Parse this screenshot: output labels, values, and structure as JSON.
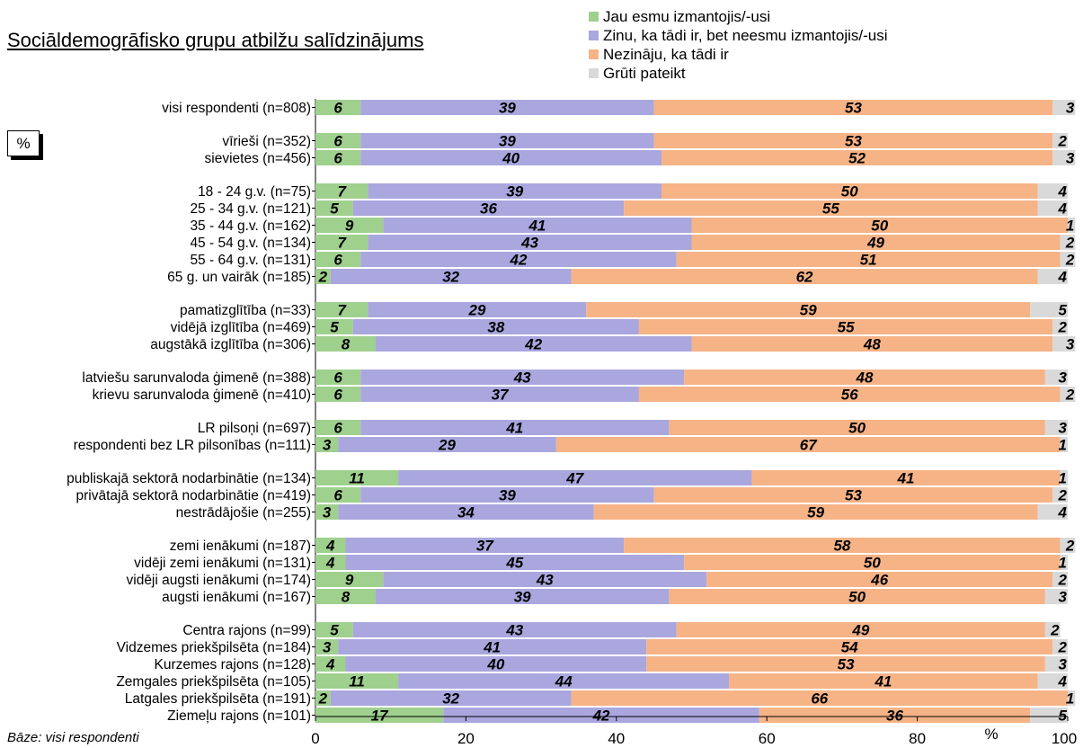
{
  "title": "Sociāldemogrāfisko grupu atbilžu salīdzinājums",
  "unit_box": "%",
  "axis_unit": "%",
  "footnote": "Bāze: visi respondenti",
  "colors": {
    "green": "#9fd08e",
    "purple": "#a9a7de",
    "orange": "#f6b386",
    "gray": "#d9d9d9"
  },
  "legend": [
    {
      "label": "Jau esmu izmantojis/-usi",
      "color": "#9fd08e"
    },
    {
      "label": "Zinu, ka tādi ir, bet neesmu izmantojis/-usi",
      "color": "#a9a7de"
    },
    {
      "label": "Nezināju, ka tādi ir",
      "color": "#f6b386"
    },
    {
      "label": "Grūti pateikt",
      "color": "#d9d9d9"
    }
  ],
  "chart_data": {
    "type": "bar",
    "orientation": "horizontal",
    "stacked": true,
    "xlim": [
      0,
      100
    ],
    "xticks": [
      "0",
      "20",
      "40",
      "60",
      "80",
      "100"
    ],
    "series": [
      {
        "name": "Jau esmu izmantojis/-usi"
      },
      {
        "name": "Zinu, ka tādi ir, bet neesmu izmantojis/-usi"
      },
      {
        "name": "Nezināju, ka tādi ir"
      },
      {
        "name": "Grūti pateikt"
      }
    ],
    "groups": [
      [
        {
          "label": "visi respondenti (n=808)",
          "values": [
            6,
            39,
            53,
            3
          ]
        }
      ],
      [
        {
          "label": "vīrieši (n=352)",
          "values": [
            6,
            39,
            53,
            2
          ]
        },
        {
          "label": "sievietes (n=456)",
          "values": [
            6,
            40,
            52,
            3
          ]
        }
      ],
      [
        {
          "label": "18 - 24 g.v. (n=75)",
          "values": [
            7,
            39,
            50,
            4
          ]
        },
        {
          "label": "25 - 34 g.v. (n=121)",
          "values": [
            5,
            36,
            55,
            4
          ]
        },
        {
          "label": "35 - 44 g.v. (n=162)",
          "values": [
            9,
            41,
            50,
            1
          ]
        },
        {
          "label": "45 - 54 g.v. (n=134)",
          "values": [
            7,
            43,
            49,
            2
          ]
        },
        {
          "label": "55 - 64 g.v. (n=131)",
          "values": [
            6,
            42,
            51,
            2
          ]
        },
        {
          "label": "65 g. un vairāk (n=185)",
          "values": [
            2,
            32,
            62,
            4
          ]
        }
      ],
      [
        {
          "label": "pamatizglītība (n=33)",
          "values": [
            7,
            29,
            59,
            5
          ]
        },
        {
          "label": "vidējā izglītība (n=469)",
          "values": [
            5,
            38,
            55,
            2
          ]
        },
        {
          "label": "augstākā izglītība (n=306)",
          "values": [
            8,
            42,
            48,
            3
          ]
        }
      ],
      [
        {
          "label": "latviešu sarunvaloda ģimenē (n=388)",
          "values": [
            6,
            43,
            48,
            3
          ]
        },
        {
          "label": "krievu sarunvaloda ģimenē (n=410)",
          "values": [
            6,
            37,
            56,
            2
          ]
        }
      ],
      [
        {
          "label": "LR pilsoņi (n=697)",
          "values": [
            6,
            41,
            50,
            3
          ]
        },
        {
          "label": "respondenti bez LR pilsonības (n=111)",
          "values": [
            3,
            29,
            67,
            1
          ]
        }
      ],
      [
        {
          "label": "publiskajā sektorā nodarbinātie (n=134)",
          "values": [
            11,
            47,
            41,
            1
          ]
        },
        {
          "label": "privātajā sektorā nodarbinātie (n=419)",
          "values": [
            6,
            39,
            53,
            2
          ]
        },
        {
          "label": "nestrādājošie (n=255)",
          "values": [
            3,
            34,
            59,
            4
          ]
        }
      ],
      [
        {
          "label": "zemi ienākumi (n=187)",
          "values": [
            4,
            37,
            58,
            2
          ]
        },
        {
          "label": "vidēji zemi ienākumi (n=131)",
          "values": [
            4,
            45,
            50,
            1
          ]
        },
        {
          "label": "vidēji augsti ienākumi (n=174)",
          "values": [
            9,
            43,
            46,
            2
          ]
        },
        {
          "label": "augsti ienākumi (n=167)",
          "values": [
            8,
            39,
            50,
            3
          ]
        }
      ],
      [
        {
          "label": "Centra rajons (n=99)",
          "values": [
            5,
            43,
            49,
            2
          ]
        },
        {
          "label": "Vidzemes priekšpilsēta (n=184)",
          "values": [
            3,
            41,
            54,
            2
          ]
        },
        {
          "label": "Kurzemes rajons (n=128)",
          "values": [
            4,
            40,
            53,
            3
          ]
        },
        {
          "label": "Zemgales priekšpilsēta (n=105)",
          "values": [
            11,
            44,
            41,
            4
          ]
        },
        {
          "label": "Latgales priekšpilsēta (n=191)",
          "values": [
            2,
            32,
            66,
            1
          ]
        },
        {
          "label": "Ziemeļu rajons (n=101)",
          "values": [
            17,
            42,
            36,
            5
          ]
        }
      ]
    ]
  }
}
